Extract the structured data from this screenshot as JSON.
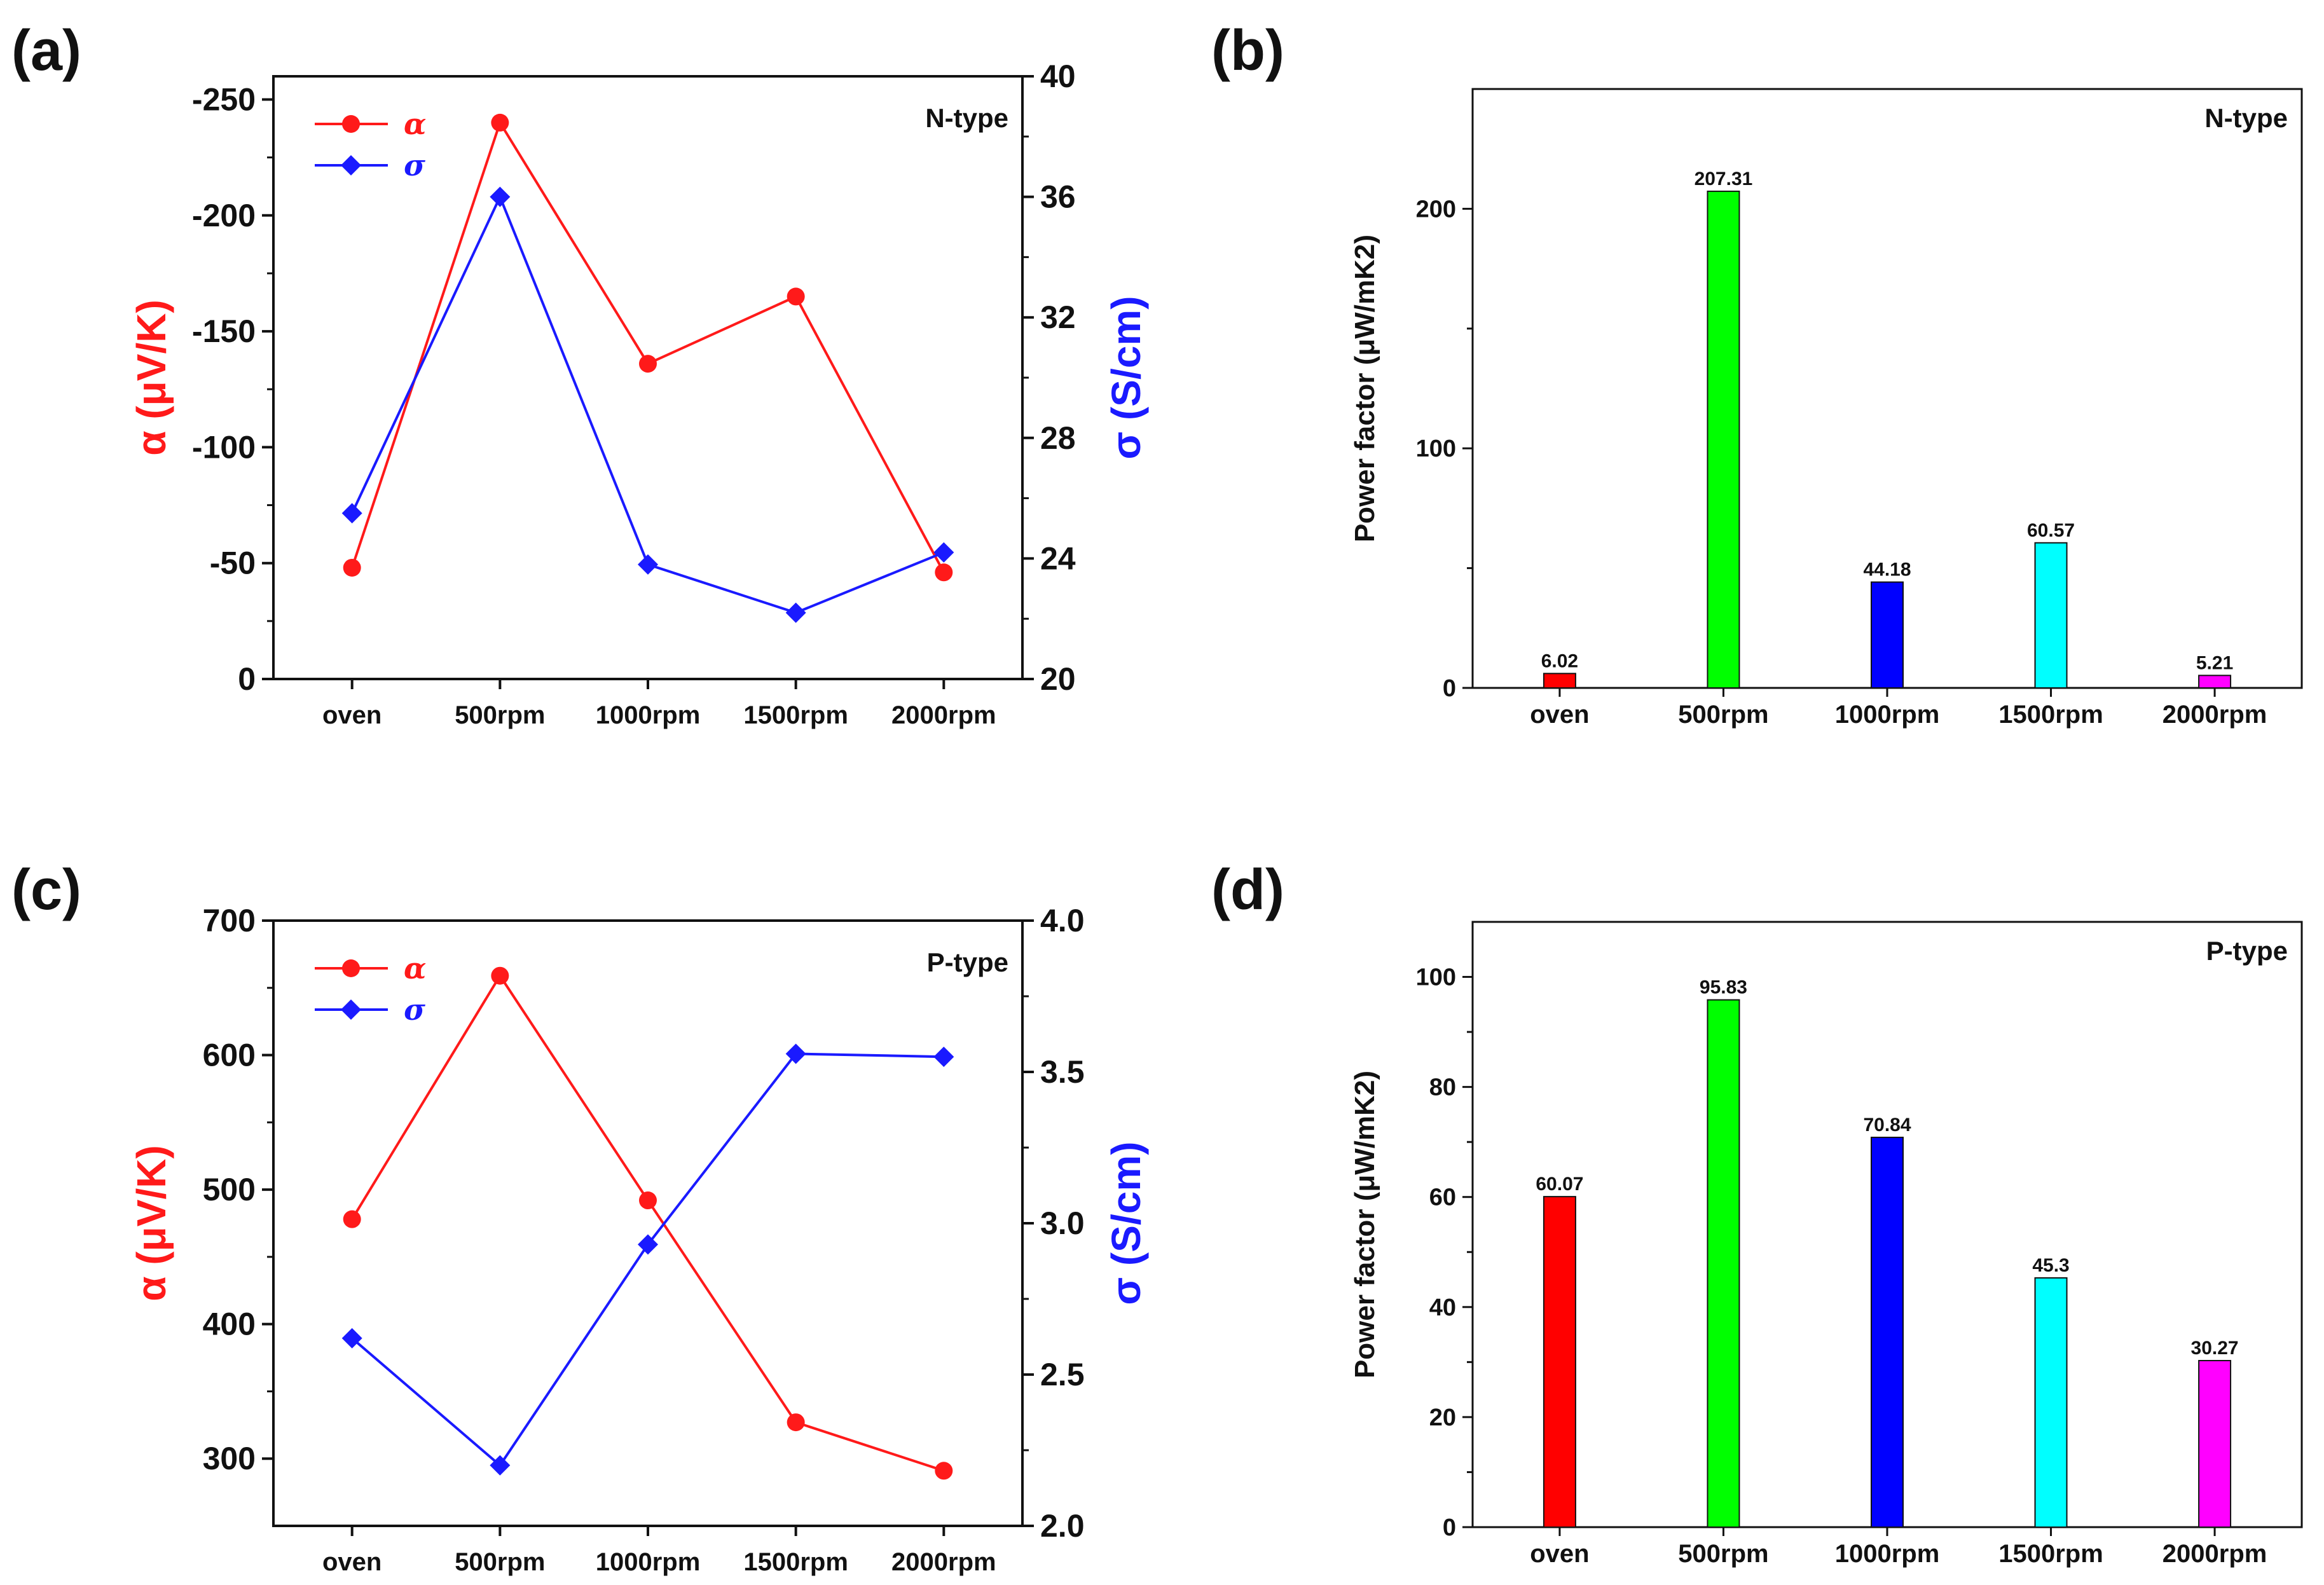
{
  "chart_data": [
    {
      "panel": "(a)",
      "type": "line",
      "annotation": "N-type",
      "categories": [
        "oven",
        "500rpm",
        "1000rpm",
        "1500rpm",
        "2000rpm"
      ],
      "ylabel": "α (μV/K)",
      "y2label": "σ (S/cm)",
      "ylim": [
        0,
        -260
      ],
      "yticks": [
        0,
        -50,
        -100,
        -150,
        -200,
        -250
      ],
      "y2lim": [
        20,
        40
      ],
      "y2ticks": [
        20,
        24,
        28,
        32,
        36,
        40
      ],
      "series": [
        {
          "name": "α",
          "axis": "left",
          "color": "#ff1a1a",
          "marker": "circle",
          "values": [
            -48,
            -240,
            -136,
            -165,
            -46
          ]
        },
        {
          "name": "σ",
          "axis": "right",
          "color": "#1a1aff",
          "marker": "diamond",
          "values": [
            25.5,
            36.0,
            23.8,
            22.2,
            24.2
          ]
        }
      ],
      "legend": "top-left"
    },
    {
      "panel": "(b)",
      "type": "bar",
      "annotation": "N-type",
      "categories": [
        "oven",
        "500rpm",
        "1000rpm",
        "1500rpm",
        "2000rpm"
      ],
      "values": [
        6.02,
        207.31,
        44.18,
        60.57,
        5.21
      ],
      "labels": [
        "6.02",
        "207.31",
        "44.18",
        "60.57",
        "5.21"
      ],
      "colors": [
        "#ff0000",
        "#00ff00",
        "#0000ff",
        "#00ffff",
        "#ff00ff"
      ],
      "ylabel": "Power factor (μW/mK2)",
      "ylim": [
        0,
        250
      ],
      "yticks": [
        0,
        100,
        200
      ]
    },
    {
      "panel": "(c)",
      "type": "line",
      "annotation": "P-type",
      "categories": [
        "oven",
        "500rpm",
        "1000rpm",
        "1500rpm",
        "2000rpm"
      ],
      "ylabel": "α (μV/K)",
      "y2label": "σ (S/cm)",
      "ylim": [
        250,
        700
      ],
      "yticks": [
        300,
        400,
        500,
        600,
        700
      ],
      "y2lim": [
        2.0,
        4.0
      ],
      "y2ticks": [
        "2.0",
        "2.5",
        "3.0",
        "3.5",
        "4.0"
      ],
      "series": [
        {
          "name": "α",
          "axis": "left",
          "color": "#ff1a1a",
          "marker": "circle",
          "values": [
            478,
            659,
            492,
            327,
            291
          ]
        },
        {
          "name": "σ",
          "axis": "right",
          "color": "#1a1aff",
          "marker": "diamond",
          "values": [
            2.62,
            2.2,
            2.93,
            3.56,
            3.55
          ]
        }
      ],
      "legend": "top-left"
    },
    {
      "panel": "(d)",
      "type": "bar",
      "annotation": "P-type",
      "categories": [
        "oven",
        "500rpm",
        "1000rpm",
        "1500rpm",
        "2000rpm"
      ],
      "values": [
        60.07,
        95.83,
        70.84,
        45.3,
        30.27
      ],
      "labels": [
        "60.07",
        "95.83",
        "70.84",
        "45.3",
        "30.27"
      ],
      "colors": [
        "#ff0000",
        "#00ff00",
        "#0000ff",
        "#00ffff",
        "#ff00ff"
      ],
      "ylabel": "Power factor (μW/mK2)",
      "ylim": [
        0,
        110
      ],
      "yticks": [
        0,
        20,
        40,
        60,
        80,
        100
      ]
    }
  ]
}
